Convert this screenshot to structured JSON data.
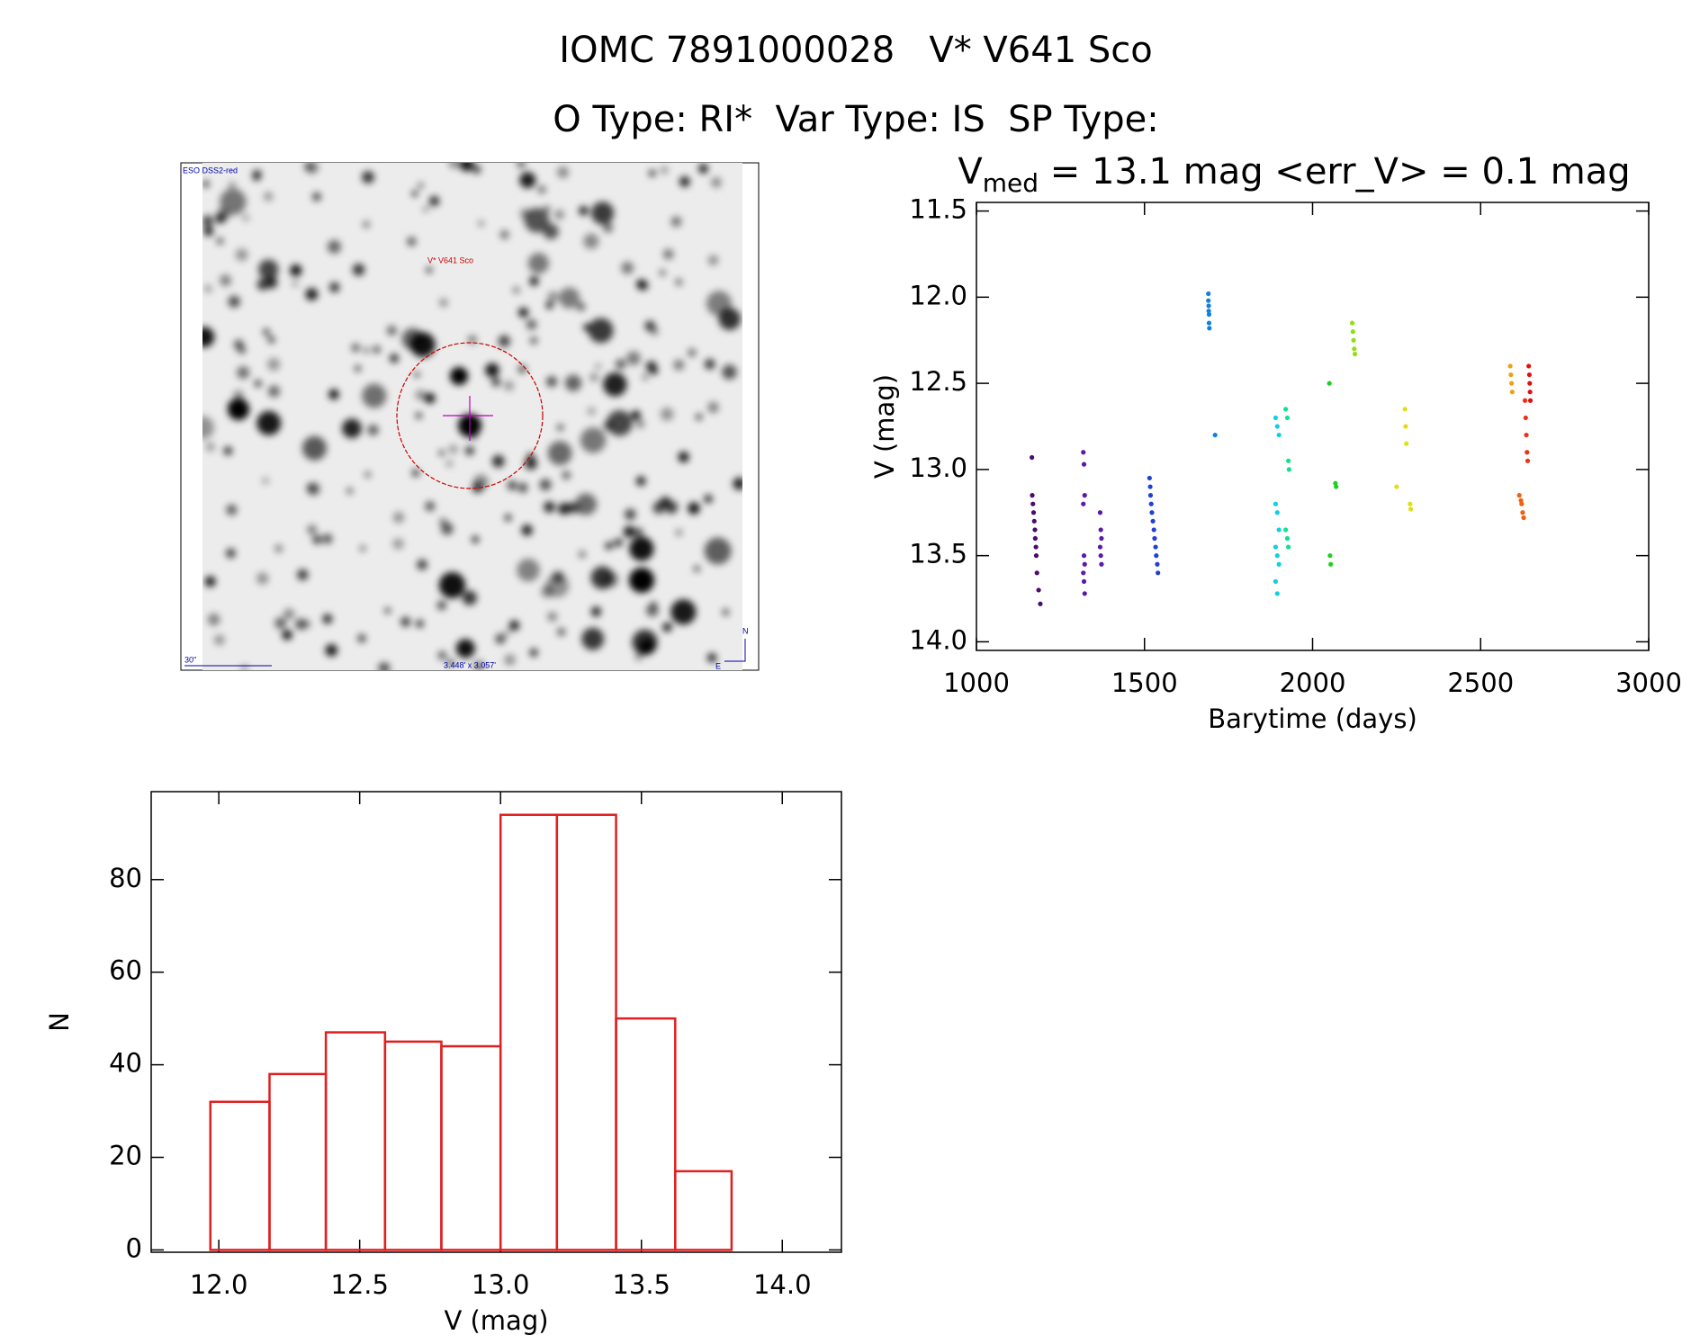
{
  "header": {
    "line1": "IOMC 7891000028   V* V641 Sco",
    "line2": "O Type: RI*  Var Type: IS  SP Type:"
  },
  "image": {
    "survey": "ESO DSS2-red",
    "target": "V* V641 Sco",
    "scale": "30\"",
    "size": "3.448' x 3.057'",
    "north": "N",
    "east": "E"
  },
  "chart_data": [
    {
      "type": "scatter",
      "title": {
        "main": "V",
        "sub": "med",
        "rest": " = 13.1 mag <err_V> = 0.1 mag"
      },
      "xlabel": "Barytime (days)",
      "ylabel": "V (mag)",
      "xlim": [
        1000,
        3000
      ],
      "xticks": [
        1000,
        1500,
        2000,
        2500,
        3000
      ],
      "ylim": [
        11.45,
        14.05
      ],
      "y_reversed": true,
      "yticks": [
        11.5,
        {
          "value": 12,
          "label": "12.0"
        },
        12.5,
        {
          "value": 13,
          "label": "13.0"
        },
        13.5,
        {
          "value": 14,
          "label": "14.0"
        }
      ],
      "series": [
        {
          "color": "#4b0a6e",
          "x": [
            1165,
            1166,
            1168,
            1170,
            1172,
            1174,
            1175,
            1177,
            1178,
            1180,
            1185,
            1190
          ],
          "values": [
            12.93,
            13.15,
            13.2,
            13.25,
            13.3,
            13.35,
            13.4,
            13.45,
            13.5,
            13.6,
            13.7,
            13.78
          ]
        },
        {
          "color": "#5a1aa8",
          "x": [
            1318,
            1320,
            1322,
            1318,
            1320,
            1322,
            1318,
            1320,
            1322,
            1368,
            1370,
            1372,
            1368,
            1370,
            1372
          ],
          "values": [
            12.9,
            12.97,
            13.15,
            13.2,
            13.5,
            13.55,
            13.6,
            13.65,
            13.72,
            13.25,
            13.35,
            13.4,
            13.45,
            13.5,
            13.55
          ]
        },
        {
          "color": "#2040d0",
          "x": [
            1515,
            1517,
            1518,
            1520,
            1522,
            1525,
            1528,
            1530,
            1533,
            1535,
            1538,
            1540
          ],
          "values": [
            13.05,
            13.1,
            13.15,
            13.2,
            13.25,
            13.3,
            13.35,
            13.4,
            13.45,
            13.5,
            13.55,
            13.6
          ]
        },
        {
          "color": "#1080e0",
          "x": [
            1690,
            1690,
            1691,
            1691,
            1692,
            1692,
            1693,
            1710
          ],
          "values": [
            11.98,
            12.02,
            12.05,
            12.08,
            12.1,
            12.15,
            12.18,
            12.8
          ]
        },
        {
          "color": "#10d0e0",
          "x": [
            1890,
            1895,
            1900,
            1890,
            1895,
            1900,
            1890,
            1895,
            1900,
            1890,
            1895
          ],
          "values": [
            12.7,
            12.75,
            12.8,
            13.2,
            13.25,
            13.35,
            13.45,
            13.5,
            13.55,
            13.65,
            13.72
          ]
        },
        {
          "color": "#10e090",
          "x": [
            1920,
            1925,
            1928,
            1930,
            1920,
            1925,
            1928
          ],
          "values": [
            12.65,
            12.7,
            12.95,
            13.0,
            13.35,
            13.4,
            13.45
          ]
        },
        {
          "color": "#20d020",
          "x": [
            2050,
            2068,
            2070,
            2052,
            2054
          ],
          "values": [
            12.5,
            13.08,
            13.1,
            13.5,
            13.55
          ]
        },
        {
          "color": "#90e010",
          "x": [
            2118,
            2120,
            2122,
            2124,
            2126
          ],
          "values": [
            12.15,
            12.2,
            12.25,
            12.3,
            12.33
          ]
        },
        {
          "color": "#e0e010",
          "x": [
            2275,
            2277,
            2279,
            2250,
            2290,
            2292
          ],
          "values": [
            12.65,
            12.75,
            12.85,
            13.1,
            13.2,
            13.23
          ]
        },
        {
          "color": "#f0a010",
          "x": [
            2588,
            2590,
            2592,
            2594
          ],
          "values": [
            12.4,
            12.45,
            12.5,
            12.55
          ]
        },
        {
          "color": "#f06010",
          "x": [
            2615,
            2620,
            2622,
            2625,
            2628
          ],
          "values": [
            13.15,
            13.18,
            13.2,
            13.25,
            13.28
          ]
        },
        {
          "color": "#f03010",
          "x": [
            2632,
            2634,
            2636,
            2638,
            2640
          ],
          "values": [
            12.6,
            12.7,
            12.8,
            12.9,
            12.95
          ]
        },
        {
          "color": "#e01010",
          "x": [
            2643,
            2645,
            2646,
            2647,
            2648
          ],
          "values": [
            12.4,
            12.45,
            12.5,
            12.55,
            12.6
          ]
        }
      ]
    },
    {
      "type": "histogram",
      "color": "#e02020",
      "xlabel": "V (mag)",
      "ylabel": "N",
      "bins": [
        11.97,
        12.18,
        12.38,
        12.59,
        12.79,
        13.0,
        13.2,
        13.41,
        13.62,
        13.82
      ],
      "values": [
        32,
        38,
        47,
        45,
        44,
        94,
        94,
        50,
        17
      ],
      "xlim": [
        11.76,
        14.21
      ],
      "xticks": [
        {
          "value": 12,
          "label": "12.0"
        },
        12.5,
        {
          "value": 13,
          "label": "13.0"
        },
        13.5,
        {
          "value": 14,
          "label": "14.0"
        }
      ],
      "ylim": [
        -0.5,
        99
      ],
      "yticks": [
        0,
        20,
        40,
        60,
        80
      ]
    }
  ]
}
